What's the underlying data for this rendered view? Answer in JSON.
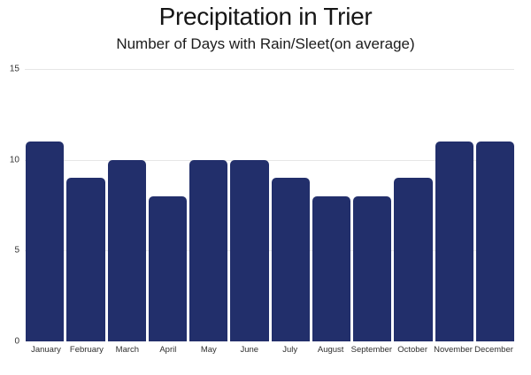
{
  "chart_data": {
    "type": "bar",
    "title": "Precipitation in Trier",
    "subtitle": "Number of Days with Rain/Sleet(on average)",
    "categories": [
      "January",
      "February",
      "March",
      "April",
      "May",
      "June",
      "July",
      "August",
      "September",
      "October",
      "November",
      "December"
    ],
    "values": [
      11,
      9,
      10,
      8,
      10,
      10,
      9,
      8,
      8,
      9,
      11,
      11
    ],
    "xlabel": "",
    "ylabel": "",
    "ylim": [
      0,
      15
    ],
    "yticks": [
      15,
      10,
      5,
      0
    ],
    "grid": "horizontal",
    "legend_position": "none",
    "colors": {
      "bar": "#222f6b",
      "gridline": "#e6e6e6",
      "background": "#ffffff",
      "title_text": "#151515",
      "axis_text": "#333333"
    }
  }
}
